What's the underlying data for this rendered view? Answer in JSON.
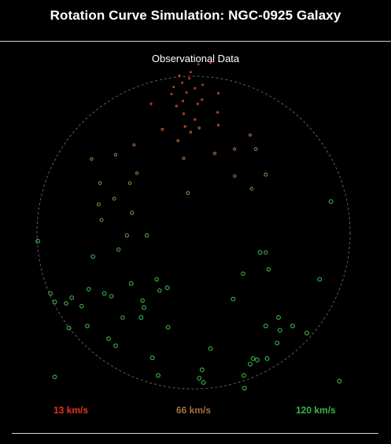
{
  "header": {
    "title": "Rotation Curve Simulation: NGC-0925 Galaxy"
  },
  "subheader": {
    "text": "Observational Data"
  },
  "legend": {
    "low": {
      "label": "13 km/s",
      "color": "#e8331f"
    },
    "mid": {
      "label": "66 km/s",
      "color": "#a0703f"
    },
    "high": {
      "label": "120 km/s",
      "color": "#35b84a"
    }
  },
  "chart_data": {
    "type": "scatter",
    "title": "Observational Data",
    "velocity_scale": {
      "min": 13,
      "mid": 66,
      "max": 120,
      "unit": "km/s"
    },
    "points": [
      {
        "x": 24,
        "y": 240,
        "v": 14
      },
      {
        "x": 7,
        "y": 238,
        "v": 15
      },
      {
        "x": -4,
        "y": 227,
        "v": 16
      },
      {
        "x": -20,
        "y": 222,
        "v": 17
      },
      {
        "x": -6,
        "y": 218,
        "v": 18
      },
      {
        "x": -16,
        "y": 212,
        "v": 19
      },
      {
        "x": 13,
        "y": 209,
        "v": 20
      },
      {
        "x": -28,
        "y": 206,
        "v": 21
      },
      {
        "x": 2,
        "y": 204,
        "v": 22
      },
      {
        "x": -10,
        "y": 198,
        "v": 23
      },
      {
        "x": -31,
        "y": 196,
        "v": 24
      },
      {
        "x": 35,
        "y": 197,
        "v": 25
      },
      {
        "x": -15,
        "y": 186,
        "v": 26
      },
      {
        "x": 6,
        "y": 182,
        "v": 27
      },
      {
        "x": 12,
        "y": 188,
        "v": 28
      },
      {
        "x": -24,
        "y": 179,
        "v": 29
      },
      {
        "x": -60,
        "y": 182,
        "v": 31
      },
      {
        "x": 34,
        "y": 170,
        "v": 32
      },
      {
        "x": -14,
        "y": 168,
        "v": 33
      },
      {
        "x": 2,
        "y": 160,
        "v": 35
      },
      {
        "x": -12,
        "y": 150,
        "v": 38
      },
      {
        "x": 35,
        "y": 152,
        "v": 40
      },
      {
        "x": -4,
        "y": 142,
        "v": 42
      },
      {
        "x": 8,
        "y": 148,
        "v": 44
      },
      {
        "x": -44,
        "y": 146,
        "v": 46
      },
      {
        "x": -22,
        "y": 130,
        "v": 48
      },
      {
        "x": -84,
        "y": 124,
        "v": 53
      },
      {
        "x": 80,
        "y": 138,
        "v": 55
      },
      {
        "x": 58,
        "y": 118,
        "v": 58
      },
      {
        "x": 30,
        "y": 112,
        "v": 60
      },
      {
        "x": -14,
        "y": 105,
        "v": 62
      },
      {
        "x": -80,
        "y": 84,
        "v": 65
      },
      {
        "x": 58,
        "y": 80,
        "v": 68
      },
      {
        "x": -110,
        "y": 110,
        "v": 70
      },
      {
        "x": -144,
        "y": 104,
        "v": 74
      },
      {
        "x": -90,
        "y": 70,
        "v": 77
      },
      {
        "x": -132,
        "y": 70,
        "v": 80
      },
      {
        "x": 82,
        "y": 62,
        "v": 83
      },
      {
        "x": 88,
        "y": 118,
        "v": 86
      },
      {
        "x": -112,
        "y": 48,
        "v": 88
      },
      {
        "x": -8,
        "y": 56,
        "v": 90
      },
      {
        "x": 102,
        "y": 82,
        "v": 92
      },
      {
        "x": -134,
        "y": 40,
        "v": 94
      },
      {
        "x": -130,
        "y": 18,
        "v": 96
      },
      {
        "x": -87,
        "y": 28,
        "v": 98
      },
      {
        "x": -94,
        "y": -4,
        "v": 100
      },
      {
        "x": -66,
        "y": -4,
        "v": 101
      },
      {
        "x": -106,
        "y": -24,
        "v": 102
      },
      {
        "x": 102,
        "y": -28,
        "v": 103
      },
      {
        "x": 106,
        "y": -52,
        "v": 104
      },
      {
        "x": 70,
        "y": -58,
        "v": 105
      },
      {
        "x": -52,
        "y": -66,
        "v": 106
      },
      {
        "x": -72,
        "y": -96,
        "v": 107
      },
      {
        "x": -48,
        "y": -82,
        "v": 108
      },
      {
        "x": -100,
        "y": -120,
        "v": 109
      },
      {
        "x": -116,
        "y": -90,
        "v": 110
      },
      {
        "x": -158,
        "y": -104,
        "v": 111
      },
      {
        "x": -120,
        "y": -150,
        "v": 112
      },
      {
        "x": -180,
        "y": -100,
        "v": 112
      },
      {
        "x": -172,
        "y": -92,
        "v": 113
      },
      {
        "x": -150,
        "y": -132,
        "v": 113
      },
      {
        "x": -176,
        "y": -135,
        "v": 114
      },
      {
        "x": -196,
        "y": -98,
        "v": 114
      },
      {
        "x": -202,
        "y": -86,
        "v": 115
      },
      {
        "x": -196,
        "y": -204,
        "v": 115
      },
      {
        "x": -148,
        "y": -80,
        "v": 116
      },
      {
        "x": -110,
        "y": -160,
        "v": 116
      },
      {
        "x": -126,
        "y": -86,
        "v": 117
      },
      {
        "x": -142,
        "y": -34,
        "v": 117
      },
      {
        "x": -70,
        "y": -106,
        "v": 118
      },
      {
        "x": -88,
        "y": -72,
        "v": 118
      },
      {
        "x": -37,
        "y": -78,
        "v": 119
      },
      {
        "x": -74,
        "y": -120,
        "v": 119
      },
      {
        "x": -58,
        "y": -177,
        "v": 119
      },
      {
        "x": 24,
        "y": -164,
        "v": 119
      },
      {
        "x": 56,
        "y": -94,
        "v": 119
      },
      {
        "x": 178,
        "y": -66,
        "v": 120
      },
      {
        "x": 94,
        "y": -28,
        "v": 120
      },
      {
        "x": 102,
        "y": -132,
        "v": 120
      },
      {
        "x": 118,
        "y": -156,
        "v": 120
      },
      {
        "x": 122,
        "y": -138,
        "v": 120
      },
      {
        "x": 120,
        "y": -120,
        "v": 120
      },
      {
        "x": -36,
        "y": -134,
        "v": 120
      },
      {
        "x": 12,
        "y": -194,
        "v": 120
      },
      {
        "x": 8,
        "y": -206,
        "v": 120
      },
      {
        "x": -50,
        "y": -202,
        "v": 120
      },
      {
        "x": 104,
        "y": -178,
        "v": 120
      },
      {
        "x": 140,
        "y": -132,
        "v": 120
      },
      {
        "x": 84,
        "y": -178,
        "v": 120
      },
      {
        "x": 71,
        "y": -202,
        "v": 120
      },
      {
        "x": 72,
        "y": -220,
        "v": 120
      },
      {
        "x": 14,
        "y": -212,
        "v": 120
      },
      {
        "x": -220,
        "y": -12,
        "v": 120
      },
      {
        "x": 206,
        "y": -210,
        "v": 120
      },
      {
        "x": 194,
        "y": 44,
        "v": 120
      },
      {
        "x": 90,
        "y": -180,
        "v": 120
      },
      {
        "x": 80,
        "y": -186,
        "v": 120
      },
      {
        "x": 160,
        "y": -142,
        "v": 120
      }
    ]
  }
}
